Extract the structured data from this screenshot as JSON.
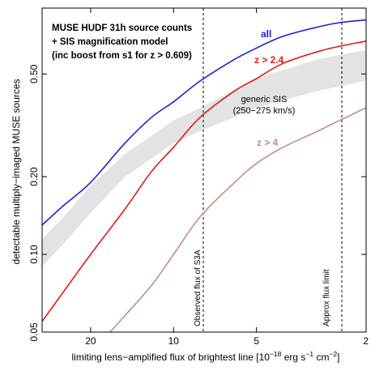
{
  "chart_data": {
    "type": "line",
    "x_scale": "reversed-log",
    "y_scale": "log",
    "xlim": [
      30,
      2
    ],
    "ylim": [
      0.05,
      0.9
    ],
    "xlabel_main": "limiting lens−amplified flux of brightest line [10",
    "xlabel_exp1": "−18",
    "xlabel_unit1": " erg s",
    "xlabel_exp2": "−1",
    "xlabel_unit2": " cm",
    "xlabel_exp3": "−2",
    "xlabel_close": "]",
    "ylabel": "detectable multiply−imaged MUSE sources",
    "x_ticks": [
      {
        "value": 20,
        "label": "20"
      },
      {
        "value": 10,
        "label": "10"
      },
      {
        "value": 5,
        "label": "5"
      },
      {
        "value": 2,
        "label": "2"
      }
    ],
    "y_ticks": [
      {
        "value": 0.05,
        "label": "0.05"
      },
      {
        "value": 0.1,
        "label": "0.10"
      },
      {
        "value": 0.2,
        "label": "0.20"
      },
      {
        "value": 0.5,
        "label": "0.50"
      }
    ],
    "annotations": {
      "title_lines": [
        "MUSE HUDF 31h source counts",
        "+ SIS magnification model",
        "(inc boost from s1 for z > 0.609)"
      ],
      "band_label_1": "generic SIS",
      "band_label_2": "(250−275 km/s)"
    },
    "vlines": [
      {
        "x": 7.8,
        "label": "Observed flux of S3A"
      },
      {
        "x": 2.45,
        "label": "Approx flux limit"
      }
    ],
    "band": {
      "name": "generic SIS",
      "color": "#e3e3e3",
      "x": [
        30,
        25,
        20,
        15,
        10,
        8,
        5,
        3,
        2
      ],
      "lower": [
        0.09,
        0.11,
        0.145,
        0.2,
        0.27,
        0.3,
        0.37,
        0.43,
        0.47
      ],
      "upper": [
        0.115,
        0.14,
        0.185,
        0.245,
        0.33,
        0.37,
        0.48,
        0.57,
        0.62
      ]
    },
    "series": [
      {
        "name": "all",
        "color": "#1f1fd6",
        "x": [
          30,
          25,
          20,
          15,
          12,
          10,
          8,
          6,
          5,
          4,
          3,
          2.5,
          2
        ],
        "values": [
          0.13,
          0.155,
          0.19,
          0.27,
          0.34,
          0.39,
          0.47,
          0.57,
          0.63,
          0.7,
          0.76,
          0.79,
          0.81
        ]
      },
      {
        "name": "z > 2.4",
        "color": "#e01b1b",
        "x": [
          30,
          25,
          20,
          15,
          12,
          10,
          8,
          6,
          5,
          4,
          3,
          2.5,
          2
        ],
        "values": [
          0.055,
          0.072,
          0.1,
          0.15,
          0.21,
          0.26,
          0.34,
          0.43,
          0.48,
          0.55,
          0.61,
          0.64,
          0.67
        ]
      },
      {
        "name": "z > 4",
        "color": "#c18c8c",
        "x": [
          17,
          15,
          12,
          10,
          8,
          6,
          5,
          4,
          3,
          2.5,
          2
        ],
        "values": [
          0.05,
          0.058,
          0.076,
          0.1,
          0.14,
          0.19,
          0.225,
          0.26,
          0.3,
          0.33,
          0.37
        ]
      }
    ]
  }
}
